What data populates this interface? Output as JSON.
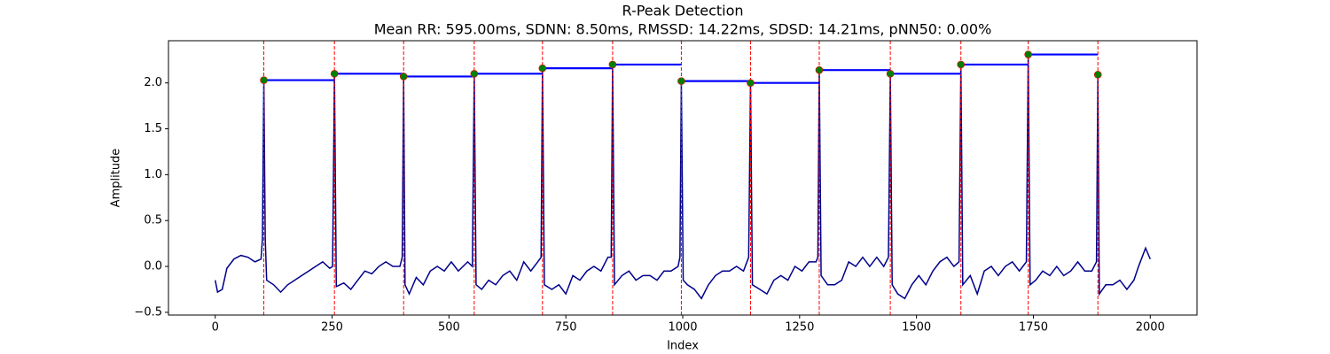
{
  "chart_data": {
    "type": "rpeak",
    "title": "R-Peak Detection",
    "subtitle": "Mean RR: 595.00ms, SDNN: 8.50ms, RMSSD: 14.22ms, SDSD: 14.21ms, pNN50: 0.00%",
    "x_label": "Index",
    "y_label": "Amplitude",
    "xlim": [
      -100,
      2100
    ],
    "ylim": [
      -0.53,
      2.46
    ],
    "xticks": [
      0,
      250,
      500,
      750,
      1000,
      1250,
      1500,
      1750,
      2000
    ],
    "yticks": [
      {
        "value": -0.5,
        "label": "−0.5"
      },
      {
        "value": 0,
        "label": "0.0"
      },
      0.5,
      {
        "value": 1,
        "label": "1.0"
      },
      1.5,
      {
        "value": 2,
        "label": "2.0"
      }
    ],
    "signal": {
      "color": "#00008b",
      "x": [
        0,
        5,
        15,
        25,
        40,
        55,
        70,
        85,
        98,
        101,
        104,
        107,
        110,
        125,
        140,
        155,
        170,
        185,
        200,
        215,
        230,
        245,
        251,
        255,
        259,
        275,
        290,
        305,
        320,
        335,
        350,
        365,
        380,
        395,
        400,
        403,
        406,
        415,
        430,
        445,
        460,
        475,
        490,
        505,
        520,
        540,
        550,
        554,
        558,
        570,
        585,
        600,
        615,
        630,
        645,
        660,
        675,
        690,
        697,
        700,
        704,
        720,
        735,
        750,
        765,
        780,
        795,
        810,
        825,
        840,
        847,
        850,
        854,
        870,
        885,
        900,
        915,
        930,
        945,
        960,
        975,
        990,
        994,
        997,
        1001,
        1010,
        1025,
        1040,
        1055,
        1070,
        1085,
        1100,
        1115,
        1130,
        1141,
        1145,
        1149,
        1165,
        1180,
        1195,
        1210,
        1225,
        1240,
        1255,
        1270,
        1285,
        1289,
        1292,
        1296,
        1310,
        1325,
        1340,
        1355,
        1370,
        1385,
        1400,
        1415,
        1430,
        1440,
        1444,
        1448,
        1460,
        1475,
        1490,
        1505,
        1520,
        1535,
        1550,
        1565,
        1580,
        1591,
        1595,
        1599,
        1615,
        1630,
        1645,
        1660,
        1675,
        1690,
        1705,
        1720,
        1735,
        1739,
        1743,
        1755,
        1770,
        1785,
        1800,
        1815,
        1830,
        1845,
        1860,
        1875,
        1885,
        1888,
        1891,
        1905,
        1920,
        1935,
        1950,
        1965,
        1975,
        1990,
        2000
      ],
      "values": [
        -0.15,
        -0.28,
        -0.25,
        -0.02,
        0.08,
        0.12,
        0.1,
        0.05,
        0.08,
        0.3,
        2.03,
        0.3,
        -0.15,
        -0.2,
        -0.28,
        -0.2,
        -0.15,
        -0.1,
        -0.05,
        0,
        0.05,
        -0.02,
        0,
        2.1,
        -0.22,
        -0.18,
        -0.25,
        -0.15,
        -0.05,
        -0.08,
        0,
        0.05,
        0,
        0,
        0.1,
        2.07,
        -0.2,
        -0.3,
        -0.12,
        -0.2,
        -0.05,
        0,
        -0.05,
        0.05,
        -0.05,
        0.05,
        0,
        2.1,
        -0.2,
        -0.25,
        -0.15,
        -0.2,
        -0.1,
        -0.05,
        -0.15,
        0.05,
        -0.05,
        0.05,
        0.1,
        2.16,
        -0.2,
        -0.25,
        -0.2,
        -0.3,
        -0.1,
        -0.15,
        -0.05,
        0,
        -0.05,
        0.1,
        0.1,
        2.2,
        -0.2,
        -0.1,
        -0.05,
        -0.15,
        -0.1,
        -0.1,
        -0.15,
        -0.05,
        -0.05,
        0,
        0.1,
        2.02,
        -0.15,
        -0.2,
        -0.25,
        -0.35,
        -0.2,
        -0.1,
        -0.05,
        -0.05,
        0,
        -0.05,
        0.1,
        2,
        -0.2,
        -0.25,
        -0.3,
        -0.15,
        -0.1,
        -0.15,
        0,
        -0.05,
        0.05,
        0.05,
        0.1,
        2.14,
        -0.1,
        -0.2,
        -0.2,
        -0.15,
        0.05,
        0,
        0.1,
        0,
        0.1,
        0,
        0.1,
        2.1,
        -0.2,
        -0.3,
        -0.35,
        -0.2,
        -0.1,
        -0.2,
        -0.05,
        0.05,
        0.1,
        0,
        0.05,
        2.2,
        -0.2,
        -0.1,
        -0.3,
        -0.05,
        0,
        -0.1,
        0,
        0.05,
        -0.05,
        0.05,
        2.31,
        -0.2,
        -0.15,
        -0.05,
        -0.1,
        0,
        -0.1,
        -0.05,
        0.05,
        -0.05,
        -0.05,
        0.05,
        2.09,
        -0.3,
        -0.2,
        -0.2,
        -0.15,
        -0.25,
        -0.15,
        0,
        0.2,
        0.08
      ]
    },
    "peaks": {
      "color": "green",
      "x": [
        104,
        255,
        403,
        554,
        700,
        850,
        997,
        1145,
        1292,
        1444,
        1595,
        1739,
        1888
      ],
      "values": [
        2.03,
        2.1,
        2.07,
        2.1,
        2.16,
        2.2,
        2.02,
        2,
        2.14,
        2.1,
        2.2,
        2.31,
        2.09
      ]
    },
    "peak_line_color": "red",
    "rr_color": "blue"
  }
}
